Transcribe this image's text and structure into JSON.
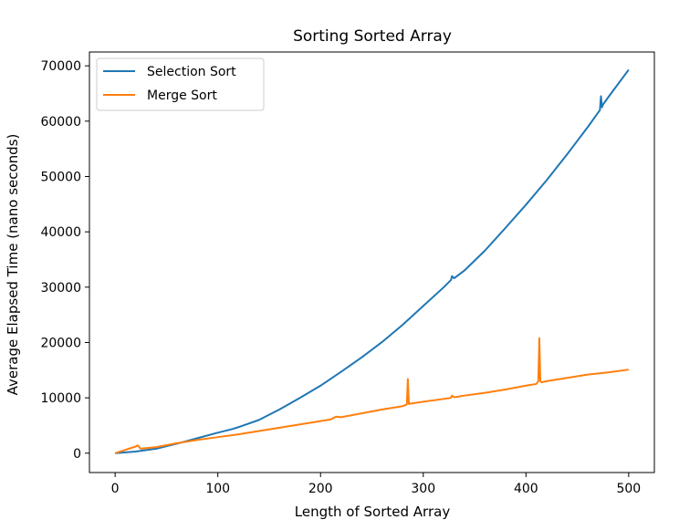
{
  "chart_data": {
    "type": "line",
    "title": "Sorting Sorted Array",
    "xlabel": "Length of Sorted Array",
    "ylabel": "Average Elapsed Time (nano seconds)",
    "xlim": [
      -25,
      525
    ],
    "ylim": [
      -3500,
      72500
    ],
    "xticks": [
      0,
      100,
      200,
      300,
      400,
      500
    ],
    "yticks": [
      0,
      10000,
      20000,
      30000,
      40000,
      50000,
      60000,
      70000
    ],
    "grid": false,
    "legend_position": "top-left",
    "series": [
      {
        "name": "Selection Sort",
        "color": "#1f77b4",
        "x": [
          0,
          20,
          40,
          60,
          80,
          100,
          115,
          120,
          140,
          160,
          180,
          200,
          220,
          240,
          260,
          280,
          300,
          320,
          327,
          328,
          330,
          340,
          360,
          380,
          400,
          420,
          440,
          460,
          472,
          473,
          474,
          475,
          480,
          500
        ],
        "y": [
          0,
          300,
          800,
          1700,
          2700,
          3700,
          4400,
          4700,
          6000,
          7900,
          10000,
          12200,
          14700,
          17300,
          20100,
          23200,
          26600,
          30000,
          31300,
          32000,
          31600,
          33000,
          36600,
          40700,
          44900,
          49300,
          54000,
          58900,
          62000,
          64500,
          62500,
          63000,
          64300,
          69300
        ]
      },
      {
        "name": "Merge Sort",
        "color": "#ff7f0e",
        "x": [
          0,
          20,
          22,
          25,
          40,
          60,
          80,
          100,
          120,
          140,
          160,
          180,
          200,
          210,
          215,
          220,
          240,
          260,
          280,
          284,
          285,
          286,
          300,
          320,
          327,
          328,
          330,
          340,
          360,
          380,
          400,
          410,
          412,
          413,
          414,
          415,
          420,
          440,
          460,
          480,
          500
        ],
        "y": [
          0,
          1200,
          1400,
          800,
          1100,
          1800,
          2400,
          2900,
          3400,
          4000,
          4600,
          5200,
          5800,
          6100,
          6600,
          6500,
          7200,
          7900,
          8500,
          8800,
          13400,
          8900,
          9300,
          9800,
          10000,
          10400,
          10100,
          10400,
          10900,
          11500,
          12200,
          12500,
          13000,
          20800,
          13000,
          12800,
          13000,
          13600,
          14200,
          14600,
          15100
        ]
      }
    ]
  }
}
